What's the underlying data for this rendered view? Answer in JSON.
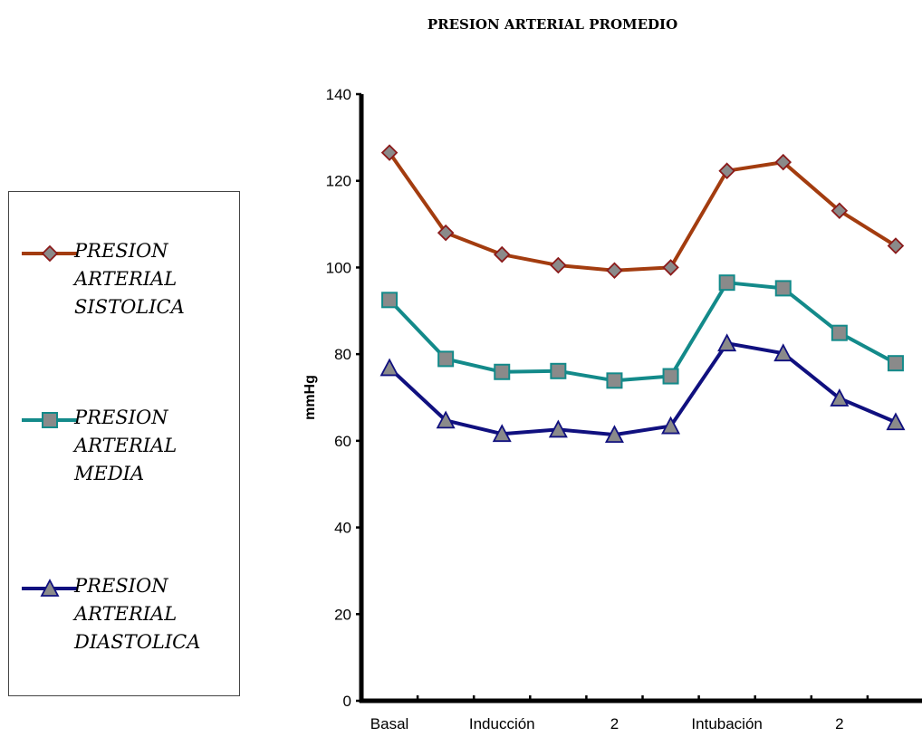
{
  "chart_data": {
    "type": "line",
    "title": "PRESION ARTERIAL PROMEDIO",
    "ylabel": "mmHg",
    "xlabel": "",
    "ylim": [
      0,
      140
    ],
    "yticks": [
      0,
      20,
      40,
      60,
      80,
      100,
      120,
      140
    ],
    "categories": [
      "Basal",
      "",
      "Inducción",
      "",
      "2",
      "",
      "Intubación",
      "",
      "2",
      ""
    ],
    "visible_tick_labels": [
      "Basal",
      "Inducción",
      "2",
      "Intubación",
      "2"
    ],
    "series": [
      {
        "name": "PRESION ARTERIAL SISTOLICA",
        "marker": "diamond",
        "color": "#a33c0f",
        "values": [
          126.5,
          108,
          103,
          100.5,
          99.3,
          100,
          122.3,
          124.3,
          113.1,
          105
        ]
      },
      {
        "name": "PRESION ARTERIAL MEDIA",
        "marker": "square",
        "color": "#138a8a",
        "values": [
          92.5,
          78.9,
          75.9,
          76.1,
          73.9,
          74.9,
          96.5,
          95.2,
          84.9,
          77.9
        ]
      },
      {
        "name": "PRESION ARTERIAL DIASTOLICA",
        "marker": "triangle",
        "color": "#10107f",
        "values": [
          76.8,
          64.7,
          61.6,
          62.6,
          61.4,
          63.4,
          82.5,
          80.2,
          69.8,
          64.3
        ]
      }
    ],
    "legend": "left",
    "grid": false
  },
  "legend": {
    "items": [
      {
        "label": "PRESION ARTERIAL SISTOLICA"
      },
      {
        "label": "PRESION ARTERIAL MEDIA"
      },
      {
        "label": "PRESION ARTERIAL DIASTOLICA"
      }
    ]
  }
}
